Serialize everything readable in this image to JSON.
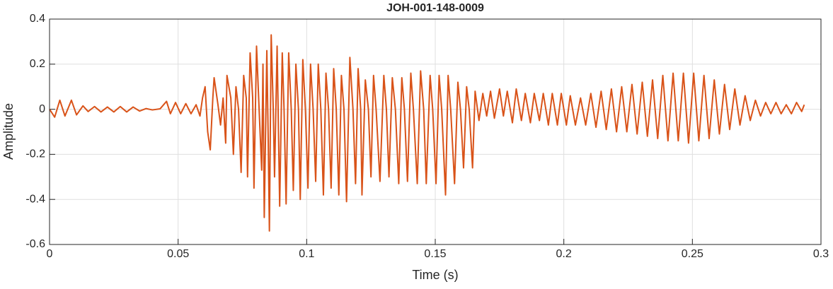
{
  "chart_data": {
    "type": "line",
    "title": "JOH-001-148-0009",
    "x_label": "Time (s)",
    "y_label": "Amplitude",
    "xlim": [
      0,
      0.3
    ],
    "xticks": [
      0,
      0.05,
      0.1,
      0.15,
      0.2,
      0.25,
      0.3
    ],
    "ylim": [
      -0.6,
      0.4
    ],
    "yticks": [
      0.4,
      0.2,
      0,
      -0.2,
      -0.4,
      -0.6
    ],
    "grid": true,
    "series": [
      {
        "color": "#d95319",
        "x": [
          0,
          0.002,
          0.004,
          0.006,
          0.0085,
          0.0105,
          0.013,
          0.015,
          0.0175,
          0.02,
          0.0225,
          0.025,
          0.0275,
          0.03,
          0.0325,
          0.035,
          0.0375,
          0.04,
          0.043,
          0.0455,
          0.047,
          0.049,
          0.051,
          0.053,
          0.055,
          0.057,
          0.0585,
          0.0595,
          0.0605,
          0.0615,
          0.0625,
          0.0635,
          0.064,
          0.0655,
          0.0665,
          0.0675,
          0.0685,
          0.069,
          0.0705,
          0.0715,
          0.0725,
          0.0735,
          0.0745,
          0.0755,
          0.0765,
          0.077,
          0.078,
          0.079,
          0.0795,
          0.0805,
          0.0815,
          0.0825,
          0.083,
          0.0835,
          0.0845,
          0.085,
          0.0855,
          0.0862,
          0.087,
          0.0875,
          0.0885,
          0.0895,
          0.0905,
          0.0912,
          0.092,
          0.093,
          0.094,
          0.0948,
          0.0958,
          0.0968,
          0.0975,
          0.0985,
          0.0995,
          0.1005,
          0.1015,
          0.1025,
          0.1035,
          0.1045,
          0.1055,
          0.1065,
          0.1075,
          0.1085,
          0.1095,
          0.1105,
          0.1115,
          0.1125,
          0.1135,
          0.1145,
          0.1155,
          0.1168,
          0.118,
          0.119,
          0.12,
          0.121,
          0.1215,
          0.1228,
          0.124,
          0.125,
          0.126,
          0.127,
          0.1285,
          0.13,
          0.131,
          0.132,
          0.1333,
          0.1345,
          0.1358,
          0.137,
          0.138,
          0.1392,
          0.1405,
          0.1415,
          0.143,
          0.1443,
          0.1455,
          0.1465,
          0.148,
          0.149,
          0.1503,
          0.1515,
          0.1525,
          0.154,
          0.155,
          0.156,
          0.1575,
          0.1588,
          0.1598,
          0.161,
          0.1622,
          0.1632,
          0.1645,
          0.1655,
          0.167,
          0.1685,
          0.17,
          0.1715,
          0.173,
          0.175,
          0.1765,
          0.178,
          0.18,
          0.1815,
          0.1835,
          0.185,
          0.187,
          0.1885,
          0.1905,
          0.192,
          0.194,
          0.1955,
          0.1975,
          0.199,
          0.201,
          0.2025,
          0.2045,
          0.2065,
          0.2085,
          0.2105,
          0.2125,
          0.2145,
          0.2165,
          0.2185,
          0.2205,
          0.2225,
          0.2245,
          0.2265,
          0.2285,
          0.2305,
          0.2325,
          0.2345,
          0.2365,
          0.2385,
          0.2405,
          0.2425,
          0.2445,
          0.2465,
          0.2485,
          0.2505,
          0.2525,
          0.2545,
          0.2565,
          0.2585,
          0.2605,
          0.2625,
          0.2645,
          0.2665,
          0.2685,
          0.2705,
          0.2725,
          0.2745,
          0.2765,
          0.2785,
          0.2805,
          0.2825,
          0.2845,
          0.2865,
          0.2885,
          0.2905,
          0.2925,
          0.2935
        ],
        "values": [
          0,
          -0.035,
          0.04,
          -0.03,
          0.04,
          -0.025,
          0.015,
          -0.01,
          0.012,
          -0.012,
          0.01,
          -0.012,
          0.012,
          -0.012,
          0.01,
          -0.008,
          0.003,
          -0.003,
          0.002,
          0.035,
          -0.02,
          0.03,
          -0.02,
          0.025,
          -0.02,
          0.02,
          -0.03,
          0.05,
          0.1,
          -0.1,
          -0.18,
          0.05,
          0.14,
          0.02,
          -0.07,
          0.05,
          -0.15,
          0.15,
          0.05,
          -0.2,
          0.1,
          0,
          -0.28,
          0.15,
          0.05,
          -0.3,
          0.25,
          0.05,
          -0.35,
          0.28,
          0,
          -0.27,
          0.2,
          -0.48,
          0.26,
          -0.1,
          -0.54,
          0.33,
          0,
          -0.3,
          0.28,
          -0.43,
          0.25,
          0,
          -0.42,
          0.25,
          0,
          -0.36,
          0.2,
          0,
          -0.4,
          0.22,
          0,
          -0.35,
          0.2,
          0,
          -0.32,
          0.2,
          0,
          -0.38,
          0.16,
          0,
          -0.35,
          0.18,
          0,
          -0.38,
          0.15,
          0,
          -0.41,
          0.23,
          0,
          -0.33,
          0.18,
          0,
          -0.38,
          0.13,
          0,
          -0.3,
          0.15,
          0,
          -0.32,
          0.15,
          0,
          -0.3,
          0.14,
          0,
          -0.33,
          0.14,
          0,
          -0.32,
          0.16,
          0,
          -0.33,
          0.17,
          0,
          -0.33,
          0.15,
          0,
          -0.33,
          0.15,
          0,
          -0.38,
          0.15,
          0,
          -0.33,
          0.12,
          0,
          -0.26,
          0.1,
          0,
          -0.26,
          0.08,
          -0.05,
          0.07,
          -0.03,
          0.08,
          -0.04,
          0.09,
          -0.03,
          0.08,
          -0.06,
          0.09,
          -0.05,
          0.07,
          -0.06,
          0.07,
          -0.05,
          0.07,
          -0.07,
          0.07,
          -0.07,
          0.07,
          -0.07,
          0.06,
          -0.07,
          0.05,
          -0.07,
          0.07,
          -0.08,
          0.08,
          -0.09,
          0.09,
          -0.1,
          0.1,
          -0.1,
          0.11,
          -0.11,
          0.12,
          -0.12,
          0.13,
          -0.13,
          0.15,
          -0.14,
          0.16,
          -0.14,
          0.16,
          -0.15,
          0.16,
          -0.14,
          0.15,
          -0.13,
          0.13,
          -0.11,
          0.11,
          -0.09,
          0.09,
          -0.07,
          0.06,
          -0.05,
          0.04,
          -0.03,
          0.03,
          -0.02,
          0.03,
          -0.02,
          0.02,
          -0.02,
          0.03,
          -0.01,
          0.02
        ]
      }
    ]
  }
}
